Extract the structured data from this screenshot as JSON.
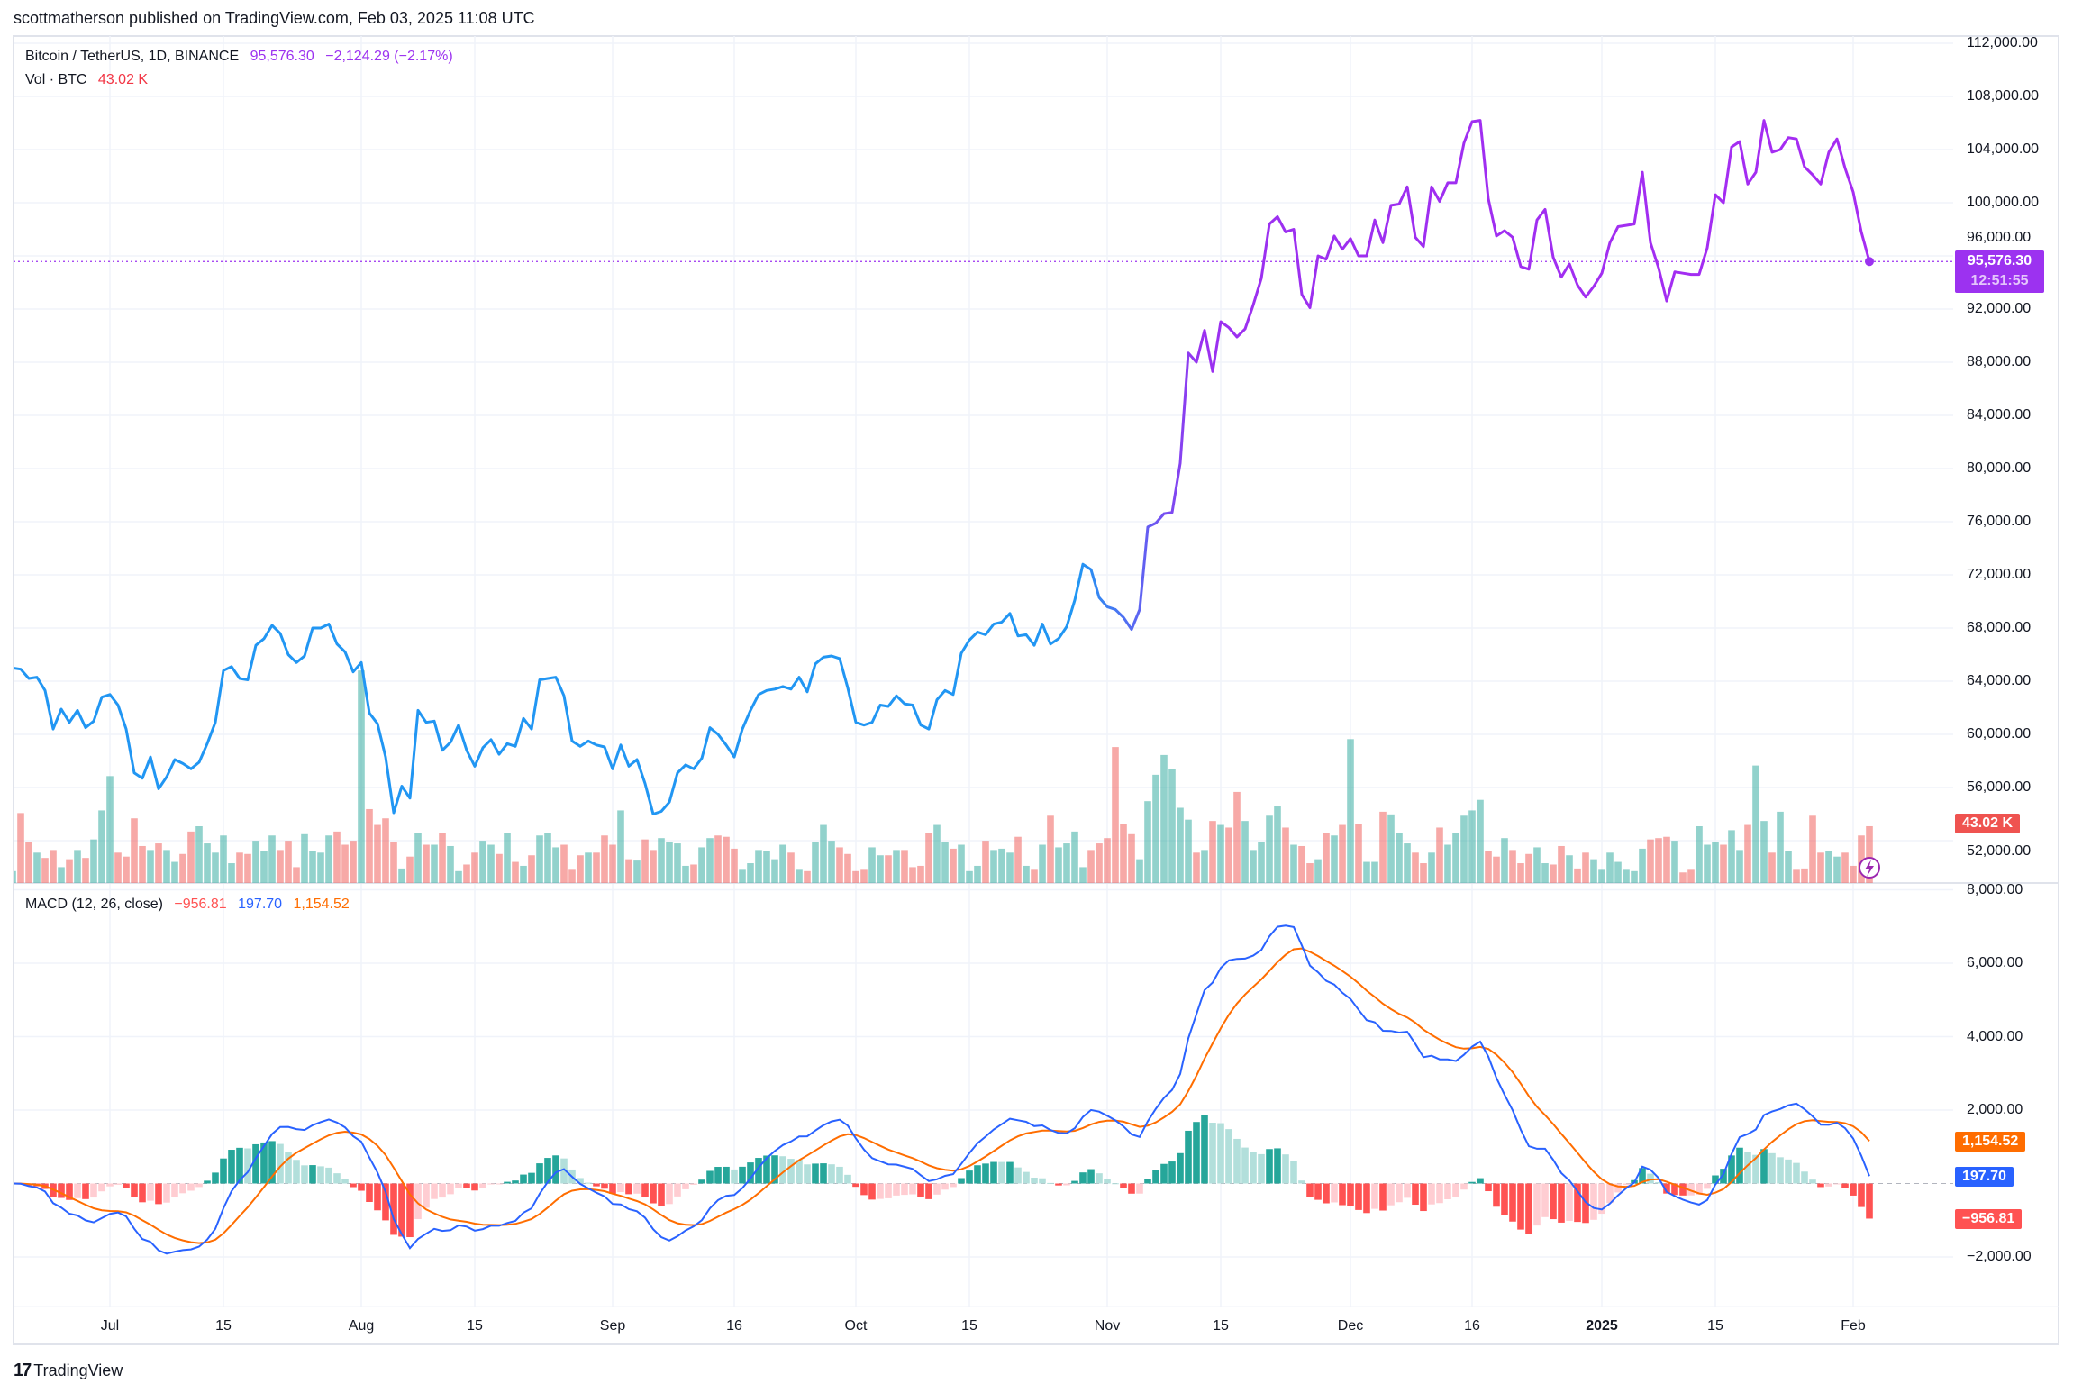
{
  "header": {
    "published": "scottmatherson published on TradingView.com, Feb 03, 2025 11:08 UTC"
  },
  "legend": {
    "symbol": "Bitcoin / TetherUS, 1D, BINANCE",
    "last": "95,576.30",
    "change": "−2,124.29 (−2.17%)",
    "vol_label": "Vol · BTC",
    "vol_value": "43.02 K",
    "macd_label": "MACD (12, 26, close)",
    "macd_hist": "−956.81",
    "macd_line": "197.70",
    "macd_signal": "1,154.52"
  },
  "badges": {
    "price": "95,576.30",
    "countdown": "12:51:55",
    "volume": "43.02 K",
    "signal": "1,154.52",
    "macd": "197.70",
    "hist": "−956.81"
  },
  "price_axis": [
    "112,000.00",
    "108,000.00",
    "104,000.00",
    "100,000.00",
    "96,000.00",
    "92,000.00",
    "88,000.00",
    "84,000.00",
    "80,000.00",
    "76,000.00",
    "72,000.00",
    "68,000.00",
    "64,000.00",
    "60,000.00",
    "56,000.00",
    "52,000.00"
  ],
  "macd_axis": [
    "8,000.00",
    "6,000.00",
    "4,000.00",
    "2,000.00",
    "−2,000.00"
  ],
  "time_axis": [
    {
      "label": "Jul",
      "date": "2024-07-01"
    },
    {
      "label": "15",
      "date": "2024-07-15"
    },
    {
      "label": "Aug",
      "date": "2024-08-01"
    },
    {
      "label": "15",
      "date": "2024-08-15"
    },
    {
      "label": "Sep",
      "date": "2024-09-01"
    },
    {
      "label": "16",
      "date": "2024-09-16"
    },
    {
      "label": "Oct",
      "date": "2024-10-01"
    },
    {
      "label": "15",
      "date": "2024-10-15"
    },
    {
      "label": "Nov",
      "date": "2024-11-01"
    },
    {
      "label": "15",
      "date": "2024-11-15"
    },
    {
      "label": "Dec",
      "date": "2024-12-01"
    },
    {
      "label": "16",
      "date": "2024-12-16"
    },
    {
      "label": "2025",
      "date": "2025-01-01"
    },
    {
      "label": "15",
      "date": "2025-01-15"
    },
    {
      "label": "Feb",
      "date": "2025-02-01"
    }
  ],
  "logo": {
    "text": "TradingView"
  },
  "colors": {
    "line_start": "#2196F3",
    "line_end": "#A62CF2",
    "vol_up": "#26A69A",
    "vol_down": "#EF5350",
    "macd": "#2962FF",
    "signal": "#FF6D00",
    "hist_up_grow": "#26A69A",
    "hist_up_fall": "#B2DFDB",
    "hist_down_grow": "#FF5252",
    "hist_down_fall": "#FFCDD2",
    "price_badge": "#9C32F0"
  },
  "chart_data": {
    "type": "line",
    "interval": "1D",
    "x_start": "2024-06-19",
    "x_end": "2025-02-03",
    "ylim": [
      48800,
      112000
    ],
    "grid": true,
    "close": [
      65000,
      64900,
      64200,
      64300,
      63300,
      60400,
      61900,
      60900,
      61800,
      60500,
      61000,
      62800,
      63000,
      62200,
      60400,
      57100,
      56700,
      58300,
      55900,
      56800,
      58100,
      57800,
      57400,
      57900,
      59300,
      60900,
      64800,
      65100,
      64200,
      64100,
      66700,
      67200,
      68200,
      67600,
      66000,
      65400,
      65900,
      68000,
      68000,
      68300,
      66800,
      66200,
      64700,
      65400,
      61600,
      60800,
      58300,
      54100,
      56100,
      55200,
      61800,
      60900,
      61000,
      58800,
      59400,
      60700,
      58800,
      57600,
      59000,
      59600,
      58500,
      59300,
      59100,
      61200,
      60400,
      64100,
      64200,
      64300,
      62900,
      59500,
      59100,
      59500,
      59200,
      59050,
      57400,
      59200,
      57600,
      58100,
      56300,
      54000,
      54200,
      54900,
      57100,
      57700,
      57400,
      58200,
      60500,
      60000,
      59200,
      58300,
      60400,
      61800,
      63000,
      63300,
      63400,
      63600,
      63400,
      64300,
      63200,
      65300,
      65800,
      65900,
      65700,
      63500,
      60900,
      60700,
      60900,
      62200,
      62100,
      62900,
      62300,
      62200,
      60700,
      60400,
      62600,
      63300,
      63000,
      66100,
      67100,
      67700,
      67500,
      68300,
      68450,
      69100,
      67400,
      67500,
      66700,
      68300,
      66800,
      67200,
      68100,
      70100,
      72800,
      72400,
      70300,
      69600,
      69400,
      68800,
      67900,
      69400,
      75600,
      75900,
      76600,
      76700,
      80400,
      88700,
      88000,
      90400,
      87300,
      91050,
      90600,
      89900,
      90500,
      92300,
      94300,
      98400,
      98950,
      97800,
      98000,
      93100,
      92100,
      96000,
      95750,
      97500,
      96500,
      97300,
      96000,
      96000,
      98700,
      97000,
      99800,
      99900,
      101200,
      97400,
      96700,
      101200,
      100100,
      101500,
      101500,
      104500,
      106100,
      106200,
      100300,
      97500,
      97900,
      97400,
      95200,
      95000,
      98700,
      99500,
      95900,
      94400,
      95400,
      93800,
      92900,
      93700,
      94700,
      97000,
      98200,
      98300,
      98400,
      102300,
      97000,
      95100,
      92600,
      94800,
      94700,
      94600,
      94600,
      96600,
      100600,
      100000,
      104200,
      104600,
      101400,
      102300,
      106200,
      103800,
      104000,
      104900,
      104800,
      102700,
      102100,
      101400,
      103800,
      104800,
      102600,
      100800,
      97800,
      95576.3
    ],
    "volume_k": [
      21,
      25,
      27,
      8,
      9,
      53,
      31,
      23,
      19,
      25,
      12,
      18,
      25,
      19,
      33,
      55,
      81,
      23,
      20,
      49,
      28,
      25,
      30,
      25,
      16,
      22,
      39,
      43,
      30,
      23,
      36,
      15,
      23,
      22,
      32,
      24,
      36,
      25,
      32,
      12,
      37,
      24,
      23,
      36,
      39,
      29,
      32,
      161,
      56,
      44,
      49,
      31,
      11,
      20,
      38,
      29,
      29,
      38,
      28,
      9,
      14,
      23,
      32,
      29,
      22,
      38,
      16,
      13,
      21,
      36,
      38,
      27,
      29,
      10,
      21,
      23,
      23,
      36,
      29,
      55,
      18,
      17,
      33,
      25,
      34,
      31,
      30,
      13,
      14,
      27,
      34,
      36,
      35,
      26,
      10,
      15,
      25,
      24,
      18,
      29,
      23,
      10,
      9,
      31,
      44,
      32,
      27,
      22,
      9,
      10,
      27,
      21,
      21,
      25,
      25,
      12,
      13,
      38,
      44,
      31,
      26,
      29,
      9,
      13,
      32,
      25,
      26,
      23,
      35,
      13,
      10,
      29,
      51,
      27,
      30,
      39,
      12,
      25,
      30,
      34,
      103,
      45,
      37,
      18,
      62,
      82,
      97,
      86,
      57,
      48,
      23,
      25,
      47,
      44,
      42,
      69,
      47,
      25,
      31,
      51,
      58,
      42,
      29,
      28,
      15,
      18,
      38,
      36,
      44,
      109,
      45,
      16,
      16,
      54,
      52,
      38,
      30,
      23,
      15,
      23,
      42,
      29,
      38,
      51,
      55,
      63,
      24,
      20,
      34,
      25,
      15,
      22,
      27,
      15,
      14,
      28,
      21,
      11,
      23,
      18,
      10,
      23,
      16,
      10,
      9,
      26,
      33,
      34,
      35,
      32,
      8,
      10,
      43,
      29,
      31,
      29,
      40,
      25,
      44,
      89,
      47,
      23,
      54,
      24,
      10,
      11,
      51,
      23,
      24,
      20,
      23,
      13,
      36,
      43.02
    ],
    "indicators": [
      "Vol · BTC",
      "MACD (12, 26, close)"
    ]
  }
}
